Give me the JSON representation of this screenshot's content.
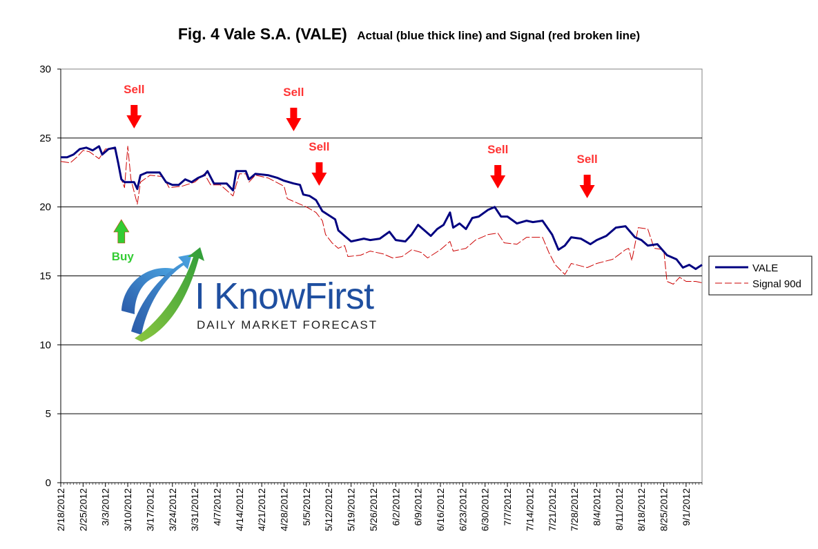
{
  "title_main": "Fig. 4 Vale S.A. (VALE)",
  "title_sub": "Actual (blue thick line) and Signal (red broken line)",
  "logo": {
    "name": "I KnowFirst",
    "tagline": "Daily Market Forecast"
  },
  "legend": {
    "position": "right",
    "entries": [
      "VALE",
      "Signal 90d"
    ]
  },
  "annotations": {
    "sell_label": "Sell",
    "buy_label": "Buy",
    "sell_dates": [
      "3/12/2012",
      "5/1/2012",
      "5/9/2012",
      "7/4/2012",
      "8/1/2012"
    ],
    "buy_dates": [
      "3/8/2012"
    ]
  },
  "chart_data": {
    "type": "line",
    "ylim": [
      0,
      30
    ],
    "yticks": [
      0,
      5,
      10,
      15,
      20,
      25,
      30
    ],
    "grid": "horizontal major lines",
    "x_tick_labels": [
      "2/18/2012",
      "2/25/2012",
      "3/3/2012",
      "3/10/2012",
      "3/17/2012",
      "3/24/2012",
      "3/31/2012",
      "4/7/2012",
      "4/14/2012",
      "4/21/2012",
      "4/28/2012",
      "5/5/2012",
      "5/12/2012",
      "5/19/2012",
      "5/26/2012",
      "6/2/2012",
      "6/9/2012",
      "6/16/2012",
      "6/23/2012",
      "6/30/2012",
      "7/7/2012",
      "7/14/2012",
      "7/21/2012",
      "7/28/2012",
      "8/4/2012",
      "8/11/2012",
      "8/18/2012",
      "8/25/2012",
      "9/1/2012"
    ],
    "x_range": [
      "2/18/2012",
      "9/6/2012"
    ],
    "series": [
      {
        "name": "VALE",
        "color": "#000080",
        "style": "solid",
        "points": [
          [
            "2/18/2012",
            23.6
          ],
          [
            "2/20/2012",
            23.6
          ],
          [
            "2/22/2012",
            23.8
          ],
          [
            "2/24/2012",
            24.2
          ],
          [
            "2/26/2012",
            24.3
          ],
          [
            "2/28/2012",
            24.1
          ],
          [
            "3/1/2012",
            24.4
          ],
          [
            "3/2/2012",
            23.8
          ],
          [
            "3/4/2012",
            24.2
          ],
          [
            "3/6/2012",
            24.3
          ],
          [
            "3/7/2012",
            23.2
          ],
          [
            "3/8/2012",
            22.0
          ],
          [
            "3/9/2012",
            21.8
          ],
          [
            "3/12/2012",
            21.8
          ],
          [
            "3/13/2012",
            21.3
          ],
          [
            "3/14/2012",
            22.3
          ],
          [
            "3/16/2012",
            22.5
          ],
          [
            "3/20/2012",
            22.5
          ],
          [
            "3/22/2012",
            21.8
          ],
          [
            "3/24/2012",
            21.6
          ],
          [
            "3/26/2012",
            21.6
          ],
          [
            "3/28/2012",
            22.0
          ],
          [
            "3/30/2012",
            21.8
          ],
          [
            "4/1/2012",
            22.1
          ],
          [
            "4/3/2012",
            22.3
          ],
          [
            "4/4/2012",
            22.6
          ],
          [
            "4/6/2012",
            21.7
          ],
          [
            "4/10/2012",
            21.7
          ],
          [
            "4/12/2012",
            21.2
          ],
          [
            "4/13/2012",
            22.6
          ],
          [
            "4/16/2012",
            22.6
          ],
          [
            "4/17/2012",
            22.0
          ],
          [
            "4/19/2012",
            22.4
          ],
          [
            "4/23/2012",
            22.3
          ],
          [
            "4/26/2012",
            22.1
          ],
          [
            "4/28/2012",
            21.9
          ],
          [
            "5/1/2012",
            21.7
          ],
          [
            "5/3/2012",
            21.6
          ],
          [
            "5/4/2012",
            20.9
          ],
          [
            "5/6/2012",
            20.8
          ],
          [
            "5/8/2012",
            20.5
          ],
          [
            "5/10/2012",
            19.7
          ],
          [
            "5/12/2012",
            19.4
          ],
          [
            "5/14/2012",
            19.1
          ],
          [
            "5/15/2012",
            18.3
          ],
          [
            "5/17/2012",
            17.9
          ],
          [
            "5/19/2012",
            17.5
          ],
          [
            "5/21/2012",
            17.6
          ],
          [
            "5/23/2012",
            17.7
          ],
          [
            "5/25/2012",
            17.6
          ],
          [
            "5/28/2012",
            17.7
          ],
          [
            "5/31/2012",
            18.2
          ],
          [
            "6/2/2012",
            17.6
          ],
          [
            "6/5/2012",
            17.5
          ],
          [
            "6/7/2012",
            18.0
          ],
          [
            "6/9/2012",
            18.7
          ],
          [
            "6/11/2012",
            18.3
          ],
          [
            "6/13/2012",
            17.9
          ],
          [
            "6/15/2012",
            18.4
          ],
          [
            "6/17/2012",
            18.7
          ],
          [
            "6/19/2012",
            19.6
          ],
          [
            "6/20/2012",
            18.5
          ],
          [
            "6/22/2012",
            18.8
          ],
          [
            "6/24/2012",
            18.4
          ],
          [
            "6/26/2012",
            19.2
          ],
          [
            "6/28/2012",
            19.3
          ],
          [
            "7/1/2012",
            19.8
          ],
          [
            "7/3/2012",
            20.0
          ],
          [
            "7/5/2012",
            19.3
          ],
          [
            "7/7/2012",
            19.3
          ],
          [
            "7/10/2012",
            18.8
          ],
          [
            "7/13/2012",
            19.0
          ],
          [
            "7/15/2012",
            18.9
          ],
          [
            "7/18/2012",
            19.0
          ],
          [
            "7/21/2012",
            18.0
          ],
          [
            "7/23/2012",
            16.9
          ],
          [
            "7/25/2012",
            17.2
          ],
          [
            "7/27/2012",
            17.8
          ],
          [
            "7/30/2012",
            17.7
          ],
          [
            "8/2/2012",
            17.3
          ],
          [
            "8/4/2012",
            17.6
          ],
          [
            "8/7/2012",
            17.9
          ],
          [
            "8/10/2012",
            18.5
          ],
          [
            "8/13/2012",
            18.6
          ],
          [
            "8/16/2012",
            17.8
          ],
          [
            "8/18/2012",
            17.6
          ],
          [
            "8/20/2012",
            17.2
          ],
          [
            "8/23/2012",
            17.3
          ],
          [
            "8/26/2012",
            16.5
          ],
          [
            "8/29/2012",
            16.2
          ],
          [
            "8/31/2012",
            15.6
          ],
          [
            "9/2/2012",
            15.8
          ],
          [
            "9/4/2012",
            15.5
          ],
          [
            "9/6/2012",
            15.8
          ]
        ]
      },
      {
        "name": "Signal 90d",
        "color": "#cc0000",
        "style": "dashed",
        "points": [
          [
            "2/18/2012",
            23.3
          ],
          [
            "2/21/2012",
            23.2
          ],
          [
            "2/23/2012",
            23.6
          ],
          [
            "2/25/2012",
            24.1
          ],
          [
            "2/27/2012",
            24.0
          ],
          [
            "3/1/2012",
            23.5
          ],
          [
            "3/3/2012",
            24.2
          ],
          [
            "3/6/2012",
            24.2
          ],
          [
            "3/8/2012",
            22.0
          ],
          [
            "3/9/2012",
            21.4
          ],
          [
            "3/10/2012",
            24.4
          ],
          [
            "3/11/2012",
            22.0
          ],
          [
            "3/13/2012",
            20.2
          ],
          [
            "3/14/2012",
            21.8
          ],
          [
            "3/17/2012",
            22.3
          ],
          [
            "3/21/2012",
            22.2
          ],
          [
            "3/23/2012",
            21.4
          ],
          [
            "3/27/2012",
            21.5
          ],
          [
            "3/31/2012",
            21.8
          ],
          [
            "4/3/2012",
            22.4
          ],
          [
            "4/5/2012",
            21.6
          ],
          [
            "4/8/2012",
            21.6
          ],
          [
            "4/12/2012",
            20.8
          ],
          [
            "4/14/2012",
            22.4
          ],
          [
            "4/16/2012",
            22.4
          ],
          [
            "4/17/2012",
            21.8
          ],
          [
            "4/19/2012",
            22.3
          ],
          [
            "4/23/2012",
            22.1
          ],
          [
            "4/28/2012",
            21.5
          ],
          [
            "4/29/2012",
            20.6
          ],
          [
            "5/2/2012",
            20.3
          ],
          [
            "5/5/2012",
            20.0
          ],
          [
            "5/8/2012",
            19.6
          ],
          [
            "5/10/2012",
            19.0
          ],
          [
            "5/11/2012",
            18.0
          ],
          [
            "5/13/2012",
            17.4
          ],
          [
            "5/15/2012",
            17.0
          ],
          [
            "5/17/2012",
            17.2
          ],
          [
            "5/18/2012",
            16.4
          ],
          [
            "5/22/2012",
            16.5
          ],
          [
            "5/25/2012",
            16.8
          ],
          [
            "5/29/2012",
            16.6
          ],
          [
            "6/1/2012",
            16.3
          ],
          [
            "6/4/2012",
            16.4
          ],
          [
            "6/7/2012",
            16.9
          ],
          [
            "6/10/2012",
            16.7
          ],
          [
            "6/12/2012",
            16.3
          ],
          [
            "6/16/2012",
            16.9
          ],
          [
            "6/19/2012",
            17.5
          ],
          [
            "6/20/2012",
            16.8
          ],
          [
            "6/24/2012",
            17.0
          ],
          [
            "6/27/2012",
            17.6
          ],
          [
            "7/1/2012",
            18.0
          ],
          [
            "7/4/2012",
            18.1
          ],
          [
            "7/6/2012",
            17.4
          ],
          [
            "7/10/2012",
            17.3
          ],
          [
            "7/13/2012",
            17.8
          ],
          [
            "7/18/2012",
            17.8
          ],
          [
            "7/20/2012",
            16.7
          ],
          [
            "7/22/2012",
            15.8
          ],
          [
            "7/25/2012",
            15.1
          ],
          [
            "7/27/2012",
            15.9
          ],
          [
            "8/1/2012",
            15.6
          ],
          [
            "8/4/2012",
            15.9
          ],
          [
            "8/9/2012",
            16.2
          ],
          [
            "8/13/2012",
            16.9
          ],
          [
            "8/14/2012",
            17.0
          ],
          [
            "8/15/2012",
            16.1
          ],
          [
            "8/17/2012",
            18.5
          ],
          [
            "8/20/2012",
            18.4
          ],
          [
            "8/22/2012",
            17.0
          ],
          [
            "8/25/2012",
            16.9
          ],
          [
            "8/26/2012",
            14.6
          ],
          [
            "8/28/2012",
            14.4
          ],
          [
            "8/30/2012",
            14.9
          ],
          [
            "9/1/2012",
            14.6
          ],
          [
            "9/4/2012",
            14.6
          ],
          [
            "9/6/2012",
            14.5
          ]
        ]
      }
    ]
  }
}
